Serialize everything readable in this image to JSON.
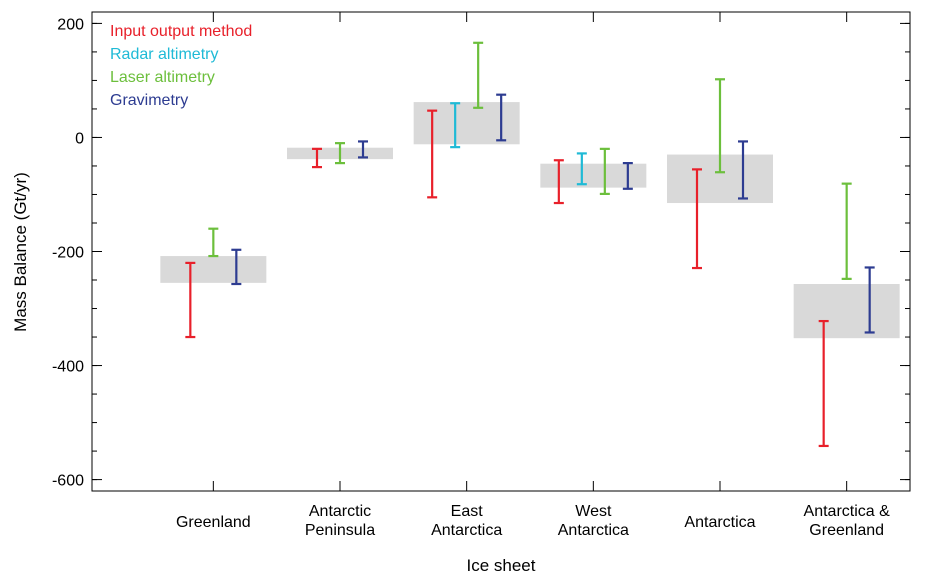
{
  "chart_data": {
    "type": "errorbar",
    "xlabel": "Ice sheet",
    "ylabel": "Mass Balance (Gt/yr)",
    "ylim": [
      -620,
      220
    ],
    "yticks": [
      200,
      0,
      -200,
      -400,
      -600
    ],
    "yticks_minor_step": 50,
    "grid": false,
    "legend_position": "top-left",
    "categories": [
      {
        "lines": [
          "Greenland"
        ]
      },
      {
        "lines": [
          "Antarctic",
          "Peninsula"
        ]
      },
      {
        "lines": [
          "East",
          "Antarctica"
        ]
      },
      {
        "lines": [
          "West",
          "Antarctica"
        ]
      },
      {
        "lines": [
          "Antarctica"
        ]
      },
      {
        "lines": [
          "Antarctica &",
          "Greenland"
        ]
      }
    ],
    "series": [
      {
        "name": "Input output method",
        "color": "#e8202a"
      },
      {
        "name": "Radar altimetry",
        "color": "#1fbad6"
      },
      {
        "name": "Laser altimetry",
        "color": "#6cbf3c"
      },
      {
        "name": "Gravimetry",
        "color": "#2d3c91"
      }
    ],
    "reconciled_color": "#d9d9d9",
    "groups": [
      {
        "box": [
          -255,
          -208
        ],
        "bars": [
          {
            "series": 0,
            "range": [
              -350,
              -220
            ]
          },
          {
            "series": 2,
            "range": [
              -208,
              -160
            ]
          },
          {
            "series": 3,
            "range": [
              -257,
              -197
            ]
          }
        ]
      },
      {
        "box": [
          -38,
          -18
        ],
        "bars": [
          {
            "series": 0,
            "range": [
              -52,
              -20
            ]
          },
          {
            "series": 2,
            "range": [
              -45,
              -10
            ]
          },
          {
            "series": 3,
            "range": [
              -35,
              -7
            ]
          }
        ]
      },
      {
        "box": [
          -12,
          62
        ],
        "bars": [
          {
            "series": 0,
            "range": [
              -105,
              47
            ]
          },
          {
            "series": 1,
            "range": [
              -17,
              60
            ]
          },
          {
            "series": 2,
            "range": [
              52,
              166
            ]
          },
          {
            "series": 3,
            "range": [
              -5,
              75
            ]
          }
        ]
      },
      {
        "box": [
          -88,
          -46
        ],
        "bars": [
          {
            "series": 0,
            "range": [
              -115,
              -40
            ]
          },
          {
            "series": 1,
            "range": [
              -82,
              -28
            ]
          },
          {
            "series": 2,
            "range": [
              -99,
              -20
            ]
          },
          {
            "series": 3,
            "range": [
              -90,
              -45
            ]
          }
        ]
      },
      {
        "box": [
          -115,
          -30
        ],
        "bars": [
          {
            "series": 0,
            "range": [
              -229,
              -56
            ]
          },
          {
            "series": 2,
            "range": [
              -61,
              102
            ]
          },
          {
            "series": 3,
            "range": [
              -107,
              -7
            ]
          }
        ]
      },
      {
        "box": [
          -352,
          -257
        ],
        "bars": [
          {
            "series": 0,
            "range": [
              -541,
              -322
            ]
          },
          {
            "series": 2,
            "range": [
              -248,
              -81
            ]
          },
          {
            "series": 3,
            "range": [
              -342,
              -228
            ]
          }
        ]
      }
    ]
  }
}
